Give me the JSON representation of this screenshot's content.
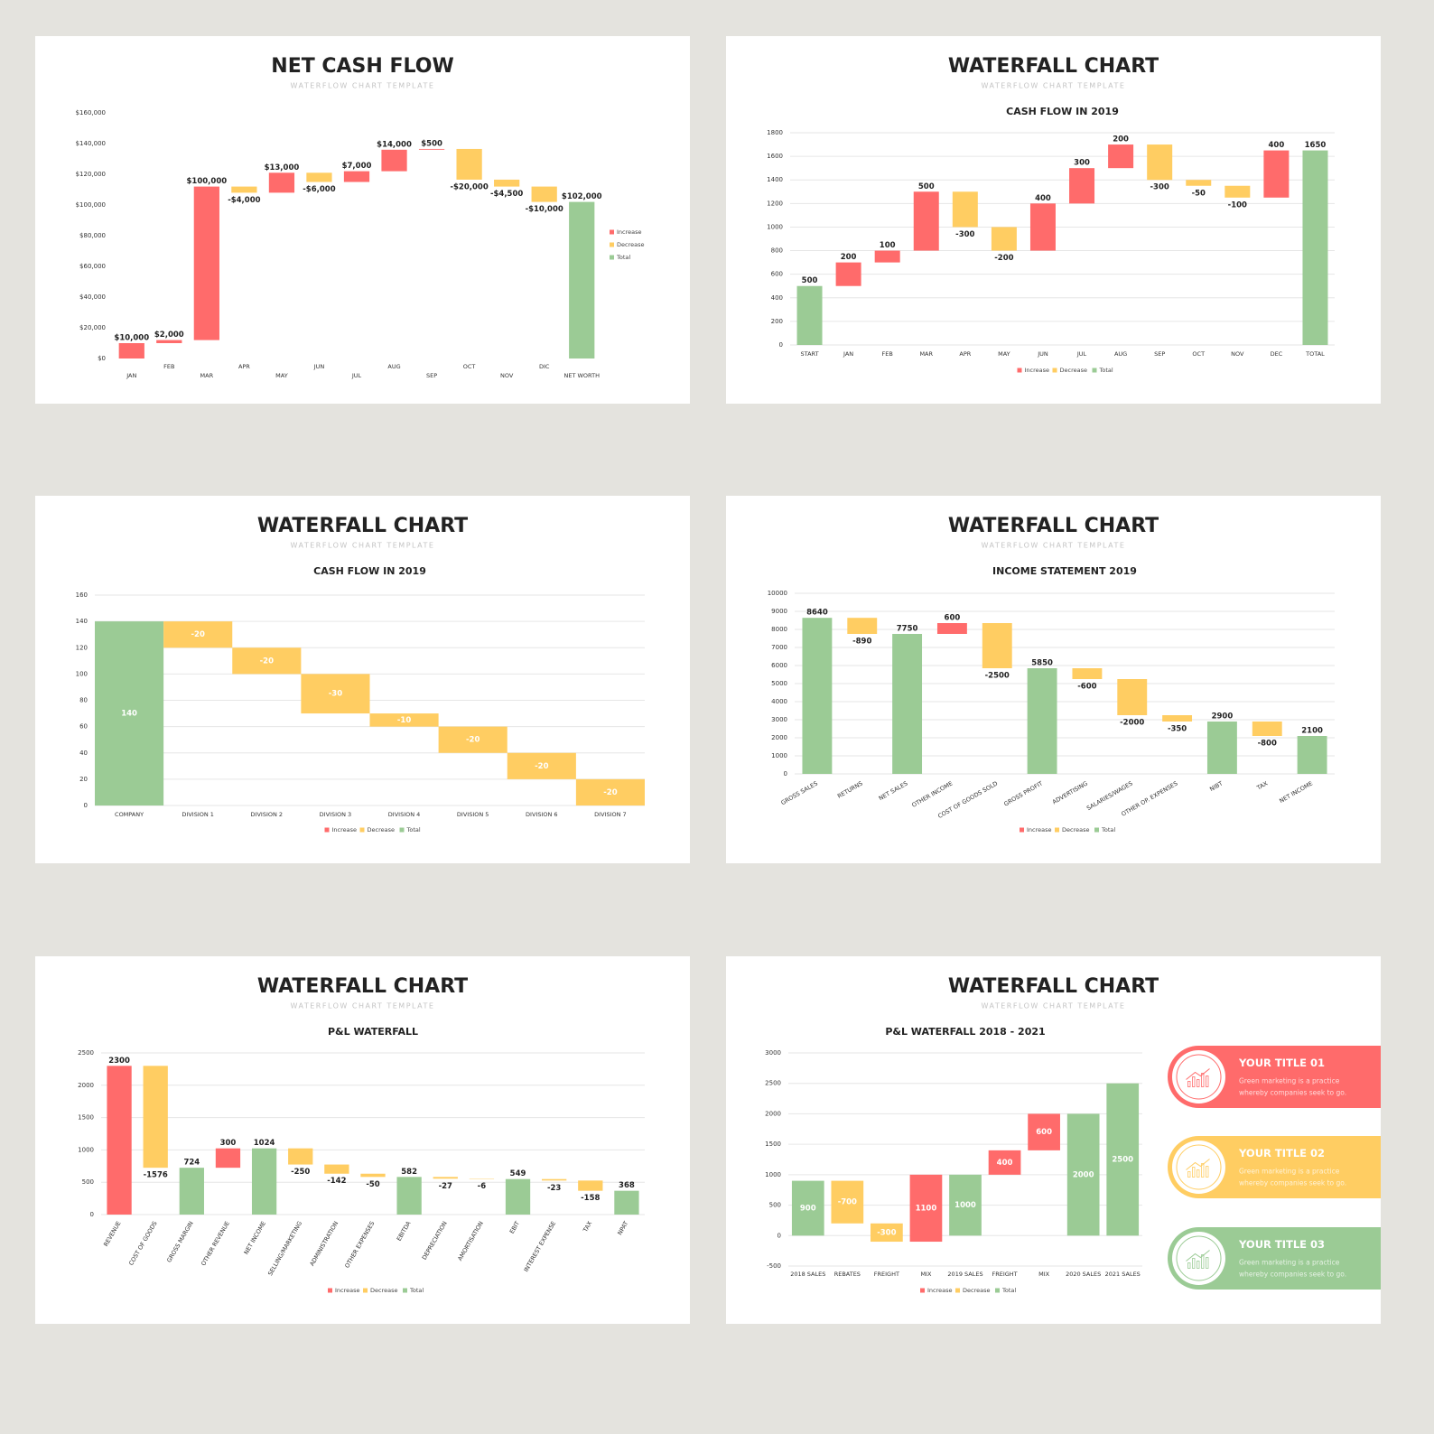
{
  "chart_data": [
    {
      "type": "waterfall",
      "title": "NET CASH FLOW",
      "subtitle": "WATERFLOW CHART TEMPLATE",
      "categories": [
        "JAN",
        "FEB",
        "MAR",
        "APR",
        "MAY",
        "JUN",
        "JUL",
        "AUG",
        "SEP",
        "OCT",
        "NOV",
        "DIC",
        "NET WORTH"
      ],
      "series": [
        {
          "name": "Increase",
          "color": "#ff6b6b",
          "values": [
            10000,
            2000,
            100000,
            null,
            13000,
            null,
            7000,
            14000,
            500,
            null,
            null,
            null,
            null
          ],
          "value_labels": [
            "$10,000",
            "$2,000",
            "$100,000",
            null,
            "$13,000",
            null,
            "$7,000",
            "$14,000",
            "$500",
            null,
            null,
            null,
            null
          ]
        },
        {
          "name": "Decrease",
          "color": "#ffcd62",
          "values": [
            null,
            null,
            null,
            -4000,
            null,
            -6000,
            null,
            null,
            null,
            -20000,
            -4500,
            -10000,
            null
          ],
          "value_labels": [
            null,
            null,
            null,
            "-$4,000",
            null,
            "-$6,000",
            null,
            null,
            null,
            "-$20,000",
            "-$4,500",
            "-$10,000",
            null
          ]
        },
        {
          "name": "Total",
          "color": "#9bcb95",
          "values": [
            null,
            null,
            null,
            null,
            null,
            null,
            null,
            null,
            null,
            null,
            null,
            null,
            102000
          ],
          "value_labels": [
            null,
            null,
            null,
            null,
            null,
            null,
            null,
            null,
            null,
            null,
            null,
            null,
            "$102,000"
          ]
        }
      ],
      "ylim": [
        0,
        160000
      ],
      "yticks": [
        {
          "value": 0,
          "label": "$0"
        },
        {
          "value": 20000,
          "label": "$20,000"
        },
        {
          "value": 40000,
          "label": "$40,000"
        },
        {
          "value": 60000,
          "label": "$60,000"
        },
        {
          "value": 80000,
          "label": "$80,000"
        },
        {
          "value": 100000,
          "label": "$100,000"
        },
        {
          "value": 120000,
          "label": "$120,000"
        },
        {
          "value": 140000,
          "label": "$140,000"
        },
        {
          "value": 160000,
          "label": "$160,000"
        }
      ],
      "grid": false,
      "legend": "right"
    },
    {
      "type": "waterfall",
      "title": "WATERFALL CHART",
      "subtitle": "WATERFLOW CHART TEMPLATE",
      "chart_title": "CASH FLOW IN 2019",
      "categories": [
        "START",
        "JAN",
        "FEB",
        "MAR",
        "APR",
        "MAY",
        "JUN",
        "JUL",
        "AUG",
        "SEP",
        "OCT",
        "NOV",
        "DEC",
        "TOTAL"
      ],
      "series": [
        {
          "name": "Increase",
          "color": "#ff6b6b",
          "values": [
            null,
            200,
            100,
            500,
            null,
            null,
            400,
            300,
            200,
            null,
            null,
            null,
            400,
            null
          ]
        },
        {
          "name": "Decrease",
          "color": "#ffcd62",
          "values": [
            null,
            null,
            null,
            null,
            -300,
            -200,
            null,
            null,
            null,
            -300,
            -50,
            -100,
            null,
            null
          ]
        },
        {
          "name": "Total",
          "color": "#9bcb95",
          "values": [
            500,
            null,
            null,
            null,
            null,
            null,
            null,
            null,
            null,
            null,
            null,
            null,
            null,
            1650
          ]
        }
      ],
      "ylim": [
        0,
        1800
      ],
      "yticks": [
        0,
        200,
        400,
        600,
        800,
        1000,
        1200,
        1400,
        1600,
        1800
      ],
      "grid": true,
      "legend": "bottom"
    },
    {
      "type": "waterfall",
      "title": "WATERFALL CHART",
      "subtitle": "WATERFLOW CHART TEMPLATE",
      "chart_title": "CASH FLOW IN 2019",
      "categories": [
        "COMPANY",
        "DIVISION 1",
        "DIVISION 2",
        "DIVISION 3",
        "DIVISION 4",
        "DIVISION 5",
        "DIVISION 6",
        "DIVISION 7"
      ],
      "series": [
        {
          "name": "Increase",
          "color": "#ff6b6b",
          "values": [
            null,
            null,
            null,
            null,
            null,
            null,
            null,
            null
          ]
        },
        {
          "name": "Decrease",
          "color": "#ffcd62",
          "values": [
            null,
            -20,
            -20,
            -30,
            -10,
            -20,
            -20,
            -20
          ]
        },
        {
          "name": "Total",
          "color": "#9bcb95",
          "values": [
            140,
            null,
            null,
            null,
            null,
            null,
            null,
            null
          ]
        }
      ],
      "ylim": [
        0,
        160
      ],
      "yticks": [
        0,
        20,
        40,
        60,
        80,
        100,
        120,
        140,
        160
      ],
      "grid": true,
      "legend": "bottom"
    },
    {
      "type": "waterfall",
      "title": "WATERFALL CHART",
      "subtitle": "WATERFLOW CHART TEMPLATE",
      "chart_title": "INCOME STATEMENT  2019",
      "categories": [
        "GROSS SALES",
        "RETURNS",
        "NET SALES",
        "OTHER INCOME",
        "COST OF GOODS SOLD",
        "GROSS PROFIT",
        "ADVERTISING",
        "SALARIES/WAGES",
        "OTHER OP. EXPENSES",
        "NIBT",
        "TAX",
        "NET INCOME"
      ],
      "series": [
        {
          "name": "Increase",
          "color": "#ff6b6b",
          "values": [
            null,
            null,
            null,
            600,
            null,
            null,
            null,
            null,
            null,
            null,
            null,
            null
          ]
        },
        {
          "name": "Decrease",
          "color": "#ffcd62",
          "values": [
            null,
            -890,
            null,
            null,
            -2500,
            null,
            -600,
            -2000,
            -350,
            null,
            -800,
            null
          ]
        },
        {
          "name": "Total",
          "color": "#9bcb95",
          "values": [
            8640,
            null,
            7750,
            null,
            null,
            5850,
            null,
            null,
            null,
            2900,
            null,
            2100
          ]
        }
      ],
      "ylim": [
        0,
        10000
      ],
      "yticks": [
        0,
        1000,
        2000,
        3000,
        4000,
        5000,
        6000,
        7000,
        8000,
        9000,
        10000
      ],
      "grid": true,
      "legend": "bottom"
    },
    {
      "type": "waterfall",
      "title": "WATERFALL CHART",
      "subtitle": "WATERFLOW CHART TEMPLATE",
      "chart_title": "P&L WATERFALL",
      "categories": [
        "REVENUE",
        "COST OF GOODS",
        "GROSS MARGIN",
        "OTHER REVENUE",
        "NET INCOME",
        "SELLING/MARKETING",
        "ADMINISTRATION",
        "OTHER EXPENSES",
        "EBITDA",
        "DEPRECIATION",
        "AMORTISATION",
        "EBIT",
        "INTEREST EXPENSE",
        "TAX",
        "NPAT"
      ],
      "series": [
        {
          "name": "Increase",
          "color": "#ff6b6b",
          "values": [
            2300,
            null,
            null,
            300,
            null,
            null,
            null,
            null,
            null,
            null,
            null,
            null,
            null,
            null,
            null
          ]
        },
        {
          "name": "Decrease",
          "color": "#ffcd62",
          "values": [
            null,
            -1576,
            null,
            null,
            null,
            -250,
            -142,
            -50,
            null,
            -27,
            -6,
            null,
            -23,
            -158,
            null
          ]
        },
        {
          "name": "Total",
          "color": "#9bcb95",
          "values": [
            null,
            null,
            724,
            null,
            1024,
            null,
            null,
            null,
            582,
            null,
            null,
            549,
            null,
            null,
            368
          ]
        }
      ],
      "ylim": [
        0,
        2500
      ],
      "yticks": [
        0,
        500,
        1000,
        1500,
        2000,
        2500
      ],
      "grid": true,
      "legend": "bottom"
    },
    {
      "type": "waterfall",
      "title": "WATERFALL CHART",
      "subtitle": "WATERFLOW CHART TEMPLATE",
      "chart_title": "P&L WATERFALL  2018 - 2021",
      "categories": [
        "2018 SALES",
        "REBATES",
        "FREIGHT",
        "MIX",
        "2019 SALES",
        "FREIGHT",
        "MIX",
        "2020 SALES",
        "2021 SALES"
      ],
      "series": [
        {
          "name": "Increase",
          "color": "#ff6b6b",
          "values": [
            null,
            null,
            null,
            1100,
            null,
            400,
            600,
            null,
            null
          ]
        },
        {
          "name": "Decrease",
          "color": "#ffcd62",
          "values": [
            null,
            -700,
            -300,
            null,
            null,
            null,
            null,
            null,
            null
          ]
        },
        {
          "name": "Total",
          "color": "#9bcb95",
          "values": [
            900,
            null,
            null,
            null,
            1000,
            null,
            null,
            2000,
            2500
          ]
        }
      ],
      "ylim": [
        -500,
        3000
      ],
      "yticks": [
        -500,
        0,
        500,
        1000,
        1500,
        2000,
        2500,
        3000
      ],
      "grid": true,
      "legend": "bottom"
    }
  ],
  "cards": [
    {
      "title": "YOUR TITLE 01",
      "color": "#ff6b6b",
      "lines": [
        "Green marketing is a practice",
        "whereby companies seek to go."
      ]
    },
    {
      "title": "YOUR TITLE 02",
      "color": "#ffcd62",
      "lines": [
        "Green marketing is a practice",
        "whereby companies seek to go."
      ]
    },
    {
      "title": "YOUR TITLE 03",
      "color": "#9bcb95",
      "lines": [
        "Green marketing is a practice",
        "whereby companies seek to go."
      ]
    }
  ]
}
